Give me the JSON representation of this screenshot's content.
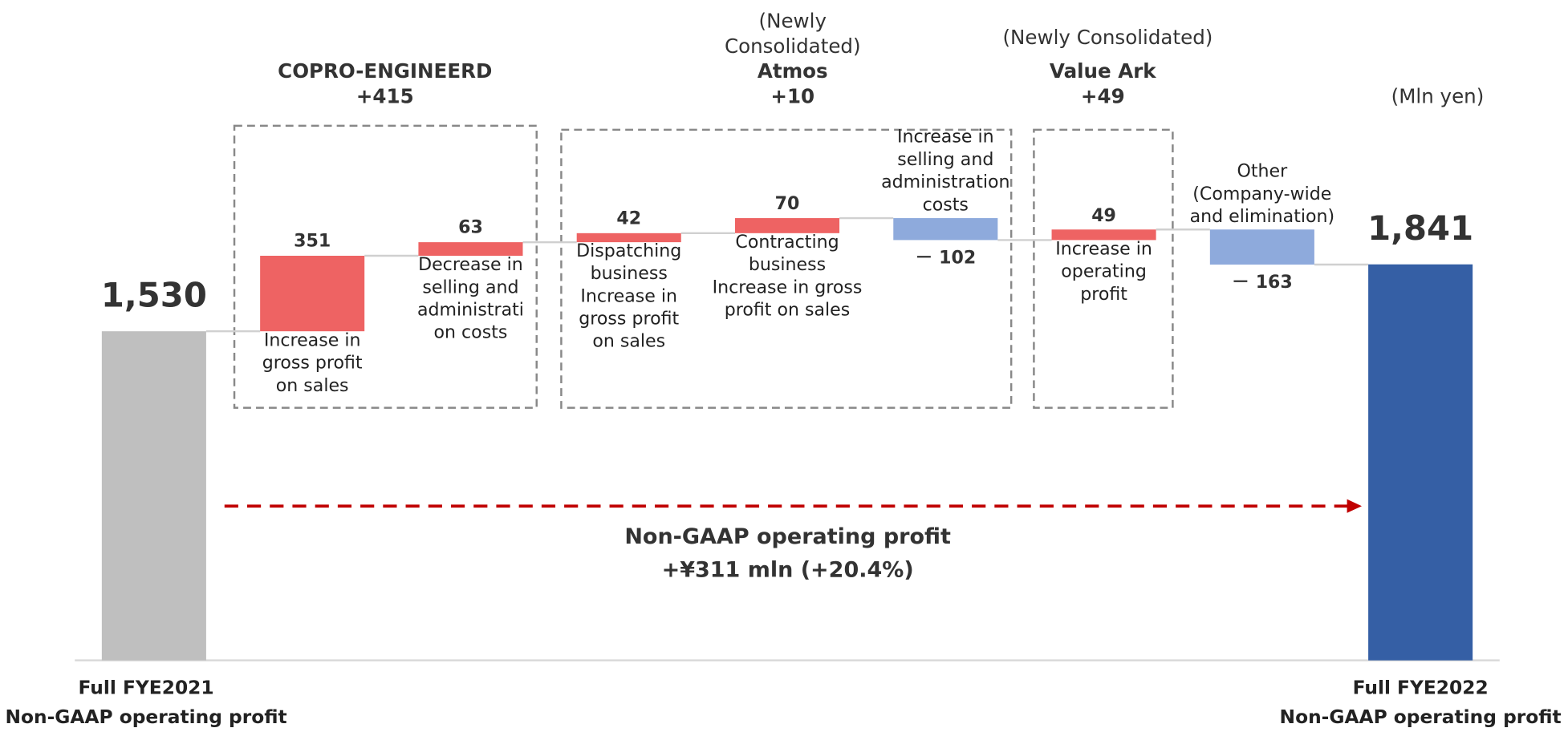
{
  "chart_data": {
    "type": "waterfall",
    "categories": [
      "Full FYE2021\nNon-GAAP operating profit",
      "Increase in\ngross profit\non sales",
      "Decrease in\nselling and\nadministrati\non costs",
      "Dispatching\nbusiness\nIncrease in\ngross profit\non sales",
      "Contracting\nbusiness\nIncrease in gross\nprofit on sales",
      "Increase in\nselling and\nadministration\ncosts",
      "Increase in\noperating\nprofit",
      "Other\n(Company-wide\nand elimination)",
      "Full FYE2022\nNon-GAAP operating profit"
    ],
    "values": [
      1530,
      351,
      63,
      42,
      70,
      -102,
      49,
      -163,
      1841
    ],
    "value_labels": [
      "1,530",
      "351",
      "63",
      "42",
      "70",
      "－ 102",
      "49",
      "－ 163",
      "1,841"
    ],
    "colors": [
      "#bfbfbf",
      "#ee6363",
      "#ee6363",
      "#ee6363",
      "#ee6363",
      "#8eaadc",
      "#ee6363",
      "#8eaadc",
      "#355fa5"
    ],
    "ylim": [
      0,
      3070
    ],
    "unit_label": "(Mln yen)",
    "groups": [
      {
        "title": "COPRO-ENGINEERD\n+415"
      },
      {
        "note": "(Newly\nConsolidated)",
        "title": "Atmos\n+10"
      },
      {
        "note": "(Newly Consolidated)",
        "title": "Value Ark\n+49"
      }
    ],
    "annotation": "Non-GAAP operating profit\n+¥311 mln (+20.4%)"
  }
}
